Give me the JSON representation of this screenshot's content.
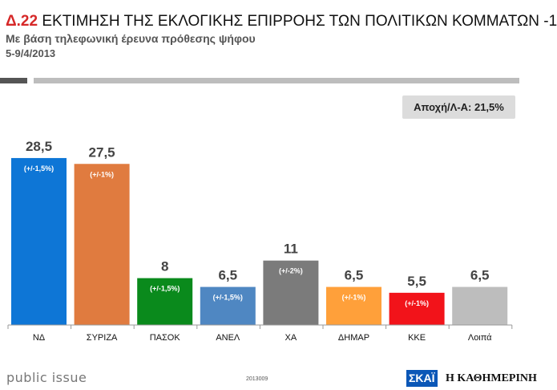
{
  "header": {
    "title_code": "Δ.22",
    "title_text": "ΕΚΤΙΜΗΣΗ ΤΗΣ ΕΚΛΟΓΙΚΗΣ ΕΠΙΡΡΟΗΣ ΤΩΝ ΠΟΛΙΤΙΚΩΝ ΚΟΜΜΑΤΩΝ -1",
    "subtitle": "Με βάση τηλεφωνική έρευνα πρόθεσης ψήφου",
    "date": "5-9/4/2013"
  },
  "abstention_label": "Αποχή/Λ-Α: 21,5%",
  "chart_data": {
    "type": "bar",
    "categories": [
      "ΝΔ",
      "ΣΥΡΙΖΑ",
      "ΠΑΣΟΚ",
      "ΑΝΕΛ",
      "ΧΑ",
      "ΔΗΜΑΡ",
      "ΚΚΕ",
      "Λοιπά"
    ],
    "values": [
      28.5,
      27.5,
      8,
      6.5,
      11,
      6.5,
      5.5,
      6.5
    ],
    "value_labels": [
      "28,5",
      "27,5",
      "8",
      "6,5",
      "11",
      "6,5",
      "5,5",
      "6,5"
    ],
    "margins": [
      "(+/-1,5%)",
      "(+/-1%)",
      "(+/-1,5%)",
      "(+/-1,5%)",
      "(+/-2%)",
      "(+/-1%)",
      "(+/-1%)",
      ""
    ],
    "colors": [
      "#0e76d6",
      "#e07b3f",
      "#0a8a1c",
      "#4f87c2",
      "#7b7b7b",
      "#ffa03a",
      "#f2131a",
      "#bdbdbd"
    ],
    "ylim": [
      0,
      30
    ]
  },
  "footer": {
    "brand": "public issue",
    "code": "2013009",
    "logo_skai": "ΣΚΑΪ",
    "logo_kathimerini": "Η ΚΑΘΗΜΕΡΙΝΗ"
  }
}
